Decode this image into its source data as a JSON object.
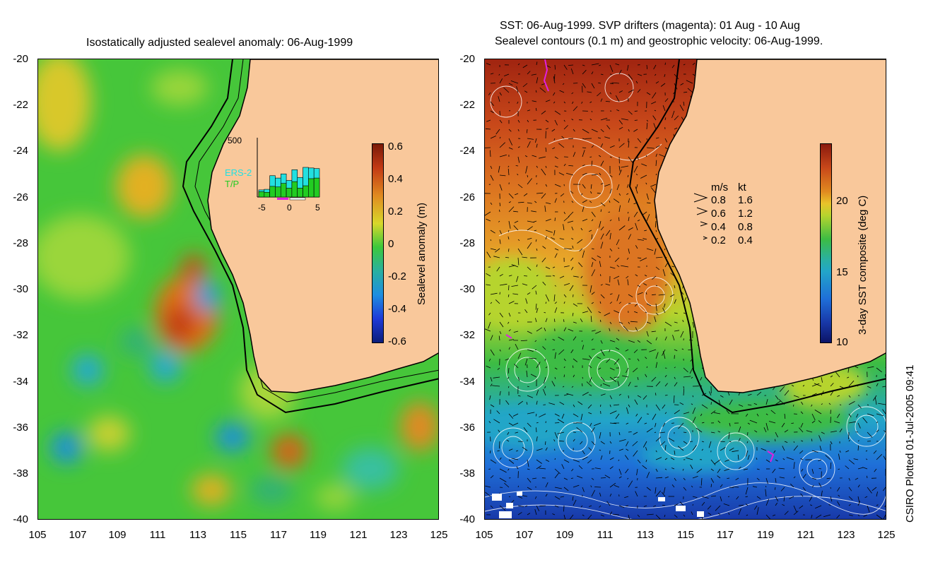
{
  "left_panel": {
    "title": "Isostatically adjusted sealevel anomaly: 06-Aug-1999",
    "colorbar": {
      "label": "Sealevel anomaly (m)",
      "ticks": [
        "0.6",
        "0.4",
        "0.2",
        "0",
        "-0.2",
        "-0.4",
        "-0.6"
      ]
    },
    "inset": {
      "ymax_label": "500",
      "series": [
        "ERS-2",
        "T/P"
      ],
      "series_colors": [
        "#22e0e0",
        "#22cc22"
      ],
      "x_ticks": [
        "-5",
        "0",
        "5"
      ],
      "bars_total": [
        60,
        65,
        180,
        160,
        195,
        140,
        230,
        165,
        250,
        245,
        240
      ],
      "bars_tp": [
        45,
        40,
        90,
        85,
        115,
        75,
        130,
        75,
        95,
        155,
        160
      ]
    }
  },
  "right_panel": {
    "title_line1": "SST: 06-Aug-1999. SVP drifters (magenta): 01 Aug - 10 Aug",
    "title_line2": "Sealevel contours (0.1 m) and geostrophic velocity: 06-Aug-1999.",
    "colorbar": {
      "label": "3-day SST composite (deg C)",
      "ticks": [
        "20",
        "15",
        "10"
      ]
    },
    "speed_legend": {
      "header_ms": "m/s",
      "header_kt": "kt",
      "rows": [
        {
          "ms": "0.8",
          "kt": "1.6"
        },
        {
          "ms": "0.6",
          "kt": "1.2"
        },
        {
          "ms": "0.4",
          "kt": "0.8"
        },
        {
          "ms": "0.2",
          "kt": "0.4"
        }
      ]
    }
  },
  "axes": {
    "y_ticks": [
      "-20",
      "-22",
      "-24",
      "-26",
      "-28",
      "-30",
      "-32",
      "-34",
      "-36",
      "-38",
      "-40"
    ],
    "x_ticks": [
      "105",
      "107",
      "109",
      "111",
      "113",
      "115",
      "117",
      "119",
      "121",
      "123",
      "125"
    ]
  },
  "credit": "CSIRO Plotted 01-Jul-2005 09:41",
  "colors": {
    "land": "#f9c89b",
    "ocean_green": "#3cc83c",
    "warm_red": "#c23a14",
    "cool_blue": "#1f6fd8"
  }
}
